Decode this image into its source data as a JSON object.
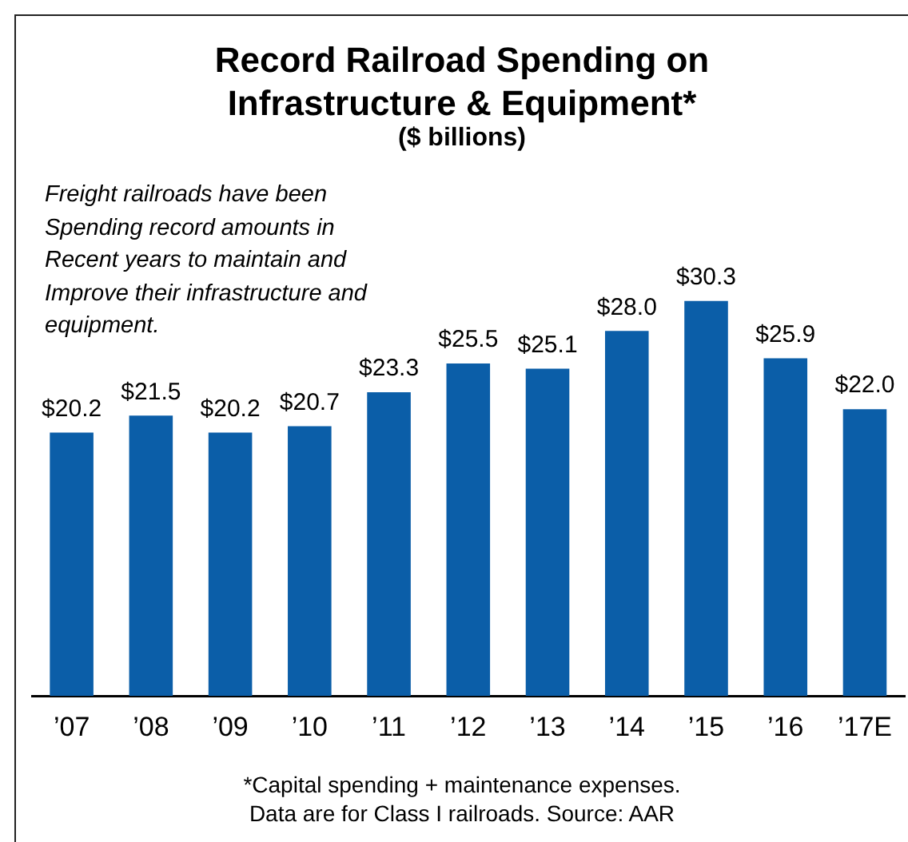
{
  "chart_data": {
    "type": "bar",
    "title": "Record Railroad Spending on Infrastructure & Equipment*",
    "subtitle": "($ billions)",
    "categories": [
      "’07",
      "’08",
      "’09",
      "’10",
      "’11",
      "’12",
      "’13",
      "’14",
      "’15",
      "’16",
      "’17E"
    ],
    "values": [
      20.2,
      21.5,
      20.2,
      20.7,
      23.3,
      25.5,
      25.1,
      28.0,
      30.3,
      25.9,
      22.0
    ],
    "value_labels": [
      "$20.2",
      "$21.5",
      "$20.2",
      "$20.7",
      "$23.3",
      "$25.5",
      "$25.1",
      "$28.0",
      "$30.3",
      "$25.9",
      "$22.0"
    ],
    "color": "#0b5ea8",
    "grid": false,
    "legend": false,
    "annotations": [
      "Freight railroads have been Spending record amounts in Recent years to maintain and Improve their infrastructure and equipment.",
      "*Capital spending + maintenance expenses.",
      "Data are for Class I railroads.  Source: AAR"
    ]
  }
}
